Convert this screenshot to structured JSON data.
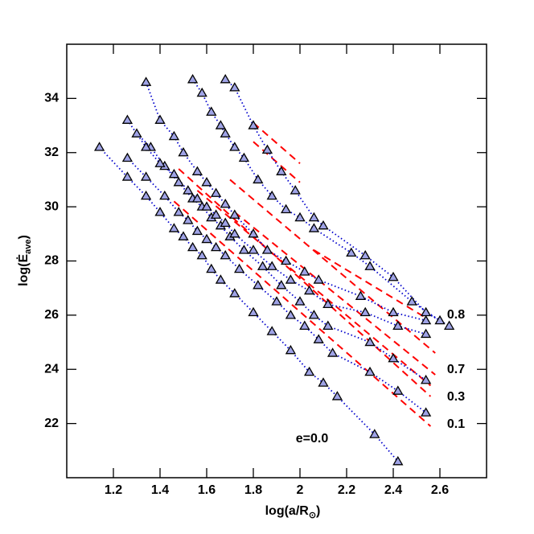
{
  "chart_data": {
    "type": "line",
    "xlabel": [
      "log(a/R",
      "⊙",
      ")"
    ],
    "ylabel": [
      "log(Ė",
      "ave",
      ")"
    ],
    "xlim": [
      1.0,
      2.8
    ],
    "ylim": [
      20,
      36
    ],
    "xticks": [
      1.2,
      1.4,
      1.6,
      1.8,
      2,
      2.2,
      2.4,
      2.6
    ],
    "yticks": [
      22,
      24,
      26,
      28,
      30,
      32,
      34
    ],
    "line_color": "#0000cc",
    "marker_color": "#9fa3e6",
    "fit_color": "#ff0000",
    "series": [
      {
        "x": [
          1.14,
          1.26,
          1.34,
          1.4,
          1.46,
          1.5,
          1.54,
          1.58,
          1.62,
          1.66,
          1.72,
          1.8,
          1.88,
          1.96,
          2.04,
          2.1,
          2.16,
          2.32,
          2.42
        ],
        "values": [
          32.2,
          31.1,
          30.4,
          29.8,
          29.2,
          28.9,
          28.5,
          28.2,
          27.7,
          27.3,
          26.8,
          26.1,
          25.4,
          24.7,
          23.9,
          23.5,
          23.0,
          21.6,
          20.6
        ]
      },
      {
        "x": [
          1.26,
          1.34,
          1.42,
          1.48,
          1.52,
          1.56,
          1.6,
          1.64,
          1.68,
          1.74,
          1.82,
          1.9,
          1.96,
          2.02,
          2.08,
          2.14,
          2.3,
          2.42,
          2.54
        ],
        "values": [
          31.8,
          31.1,
          30.4,
          29.8,
          29.5,
          29.1,
          28.8,
          28.5,
          28.2,
          27.7,
          27.1,
          26.5,
          26.0,
          25.6,
          25.1,
          24.6,
          23.9,
          23.2,
          22.4
        ]
      },
      {
        "x": [
          1.3,
          1.36,
          1.42,
          1.48,
          1.54,
          1.58,
          1.62,
          1.66,
          1.7,
          1.76,
          1.84,
          1.92,
          2.0,
          2.06,
          2.12,
          2.3,
          2.4,
          2.54
        ],
        "values": [
          32.7,
          32.2,
          31.5,
          30.9,
          30.3,
          30.0,
          29.6,
          29.3,
          28.9,
          28.4,
          27.8,
          27.1,
          26.5,
          26.0,
          25.6,
          25.0,
          24.4,
          23.6
        ]
      },
      {
        "x": [
          1.26,
          1.34,
          1.4,
          1.46,
          1.52,
          1.56,
          1.6,
          1.64,
          1.68,
          1.72,
          1.8,
          1.88,
          1.96,
          2.04,
          2.12,
          2.28,
          2.42,
          2.54
        ],
        "values": [
          33.2,
          32.2,
          31.6,
          31.2,
          30.6,
          30.3,
          30.0,
          29.7,
          29.4,
          29.0,
          28.4,
          27.8,
          27.3,
          26.9,
          26.4,
          26.1,
          25.6,
          25.3
        ]
      },
      {
        "x": [
          1.34,
          1.4,
          1.46,
          1.5,
          1.56,
          1.6,
          1.64,
          1.68,
          1.72,
          1.8,
          1.86,
          1.94,
          2.02,
          2.08,
          2.26,
          2.4,
          2.54
        ],
        "values": [
          34.6,
          33.2,
          32.6,
          32.0,
          31.3,
          30.9,
          30.5,
          30.1,
          29.7,
          29.0,
          28.4,
          28.0,
          27.6,
          27.3,
          26.7,
          26.1,
          25.8
        ]
      },
      {
        "x": [
          1.54,
          1.58,
          1.62,
          1.66,
          1.68,
          1.72,
          1.76,
          1.82,
          1.88,
          1.94,
          2.0,
          2.06,
          2.22,
          2.3,
          2.48,
          2.6
        ],
        "values": [
          34.7,
          34.2,
          33.5,
          33.0,
          32.7,
          32.2,
          31.8,
          31.0,
          30.4,
          29.9,
          29.6,
          29.2,
          28.3,
          27.8,
          26.5,
          25.8
        ]
      },
      {
        "x": [
          1.68,
          1.72,
          1.8,
          1.86,
          1.92,
          1.98,
          2.06,
          2.1,
          2.28,
          2.4,
          2.54,
          2.64
        ],
        "values": [
          34.7,
          34.4,
          33.0,
          32.1,
          31.3,
          30.6,
          29.6,
          29.3,
          28.2,
          27.4,
          26.1,
          25.6
        ]
      }
    ],
    "fits": [
      {
        "x": [
          1.46,
          2.56
        ],
        "values": [
          30.2,
          21.9
        ]
      },
      {
        "x": [
          1.48,
          2.56
        ],
        "values": [
          31.4,
          23.0
        ]
      },
      {
        "x": [
          1.56,
          2.56
        ],
        "values": [
          30.6,
          23.4
        ]
      },
      {
        "x": [
          1.7,
          2.58
        ],
        "values": [
          31.0,
          24.6
        ]
      },
      {
        "x": [
          1.72,
          2.58
        ],
        "values": [
          29.8,
          23.8
        ]
      },
      {
        "x": [
          1.8,
          2.0
        ],
        "values": [
          32.4,
          30.9
        ]
      },
      {
        "x": [
          1.8,
          2.0
        ],
        "values": [
          33.1,
          31.6
        ]
      },
      {
        "x": [
          2.06,
          2.54
        ],
        "values": [
          28.4,
          25.9
        ]
      }
    ],
    "annotations": [
      "e=0.0",
      "0.1",
      "0.3",
      "0.7",
      "0.8"
    ]
  }
}
